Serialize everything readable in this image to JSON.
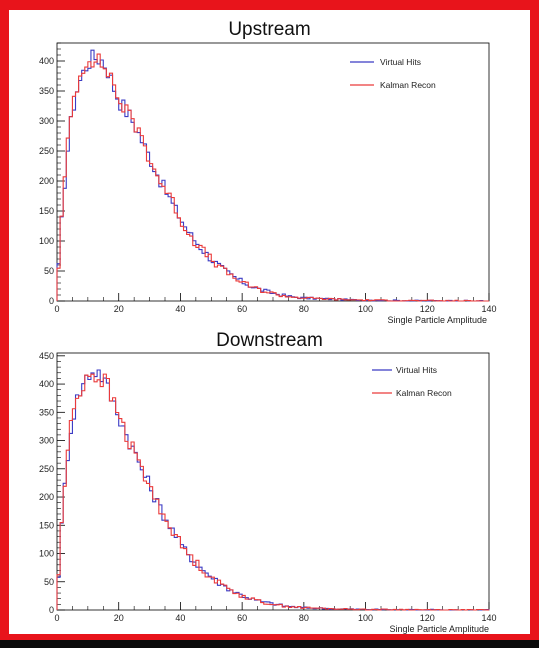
{
  "chart_data": [
    {
      "type": "line",
      "title": "Upstream",
      "xlabel": "Single Particle Amplitude",
      "ylabel": "",
      "xlim": [
        0,
        140
      ],
      "ylim": [
        0,
        430
      ],
      "x_ticks": [
        0,
        20,
        40,
        60,
        80,
        100,
        120,
        140
      ],
      "y_ticks": [
        0,
        50,
        100,
        150,
        200,
        250,
        300,
        350,
        400
      ],
      "grid": false,
      "legend_placement": "top-right",
      "series": [
        {
          "name": "Virtual Hits",
          "color": "#3b3bc4",
          "x": [
            0,
            2,
            4,
            6,
            8,
            10,
            12,
            14,
            16,
            18,
            20,
            22,
            24,
            26,
            28,
            30,
            32,
            34,
            36,
            38,
            40,
            42,
            44,
            46,
            48,
            50,
            52,
            54,
            56,
            58,
            60,
            62,
            64,
            66,
            68,
            70,
            72,
            74,
            76,
            78,
            80,
            85,
            90,
            95,
            100,
            110,
            120,
            130,
            140
          ],
          "y": [
            20,
            170,
            280,
            345,
            375,
            398,
            406,
            405,
            392,
            362,
            336,
            320,
            305,
            285,
            262,
            240,
            218,
            195,
            176,
            156,
            138,
            120,
            105,
            93,
            81,
            70,
            61,
            52,
            45,
            38,
            32,
            27,
            22,
            19,
            16,
            13,
            11,
            9,
            7,
            6,
            5,
            4,
            3,
            2,
            1.5,
            0.8,
            0.4,
            0.2,
            0
          ]
        },
        {
          "name": "Kalman Recon",
          "color": "#ea3a3a",
          "x": [
            0,
            2,
            4,
            6,
            8,
            10,
            12,
            14,
            16,
            18,
            20,
            22,
            24,
            26,
            28,
            30,
            32,
            34,
            36,
            38,
            40,
            42,
            44,
            46,
            48,
            50,
            52,
            54,
            56,
            58,
            60,
            62,
            64,
            66,
            68,
            70,
            72,
            74,
            76,
            78,
            80,
            85,
            90,
            95,
            100,
            110,
            120,
            130,
            140
          ],
          "y": [
            20,
            175,
            290,
            355,
            380,
            410,
            403,
            395,
            388,
            368,
            334,
            322,
            300,
            290,
            265,
            238,
            214,
            196,
            178,
            160,
            136,
            118,
            103,
            92,
            80,
            69,
            60,
            51,
            44,
            37,
            31,
            26,
            22,
            18,
            15,
            13,
            10,
            8,
            7,
            6,
            5,
            4,
            3,
            2,
            1.5,
            0.8,
            0.4,
            0.2,
            0
          ]
        }
      ]
    },
    {
      "type": "line",
      "title": "Downstream",
      "xlabel": "Single Particle Amplitude",
      "ylabel": "",
      "xlim": [
        0,
        140
      ],
      "ylim": [
        0,
        455
      ],
      "x_ticks": [
        0,
        20,
        40,
        60,
        80,
        100,
        120,
        140
      ],
      "y_ticks": [
        0,
        50,
        100,
        150,
        200,
        250,
        300,
        350,
        400,
        450
      ],
      "grid": false,
      "legend_placement": "top-right",
      "series": [
        {
          "name": "Virtual Hits",
          "color": "#3b3bc4",
          "x": [
            0,
            2,
            4,
            6,
            8,
            10,
            12,
            14,
            16,
            18,
            20,
            22,
            24,
            26,
            28,
            30,
            32,
            34,
            36,
            38,
            40,
            42,
            44,
            46,
            48,
            50,
            52,
            54,
            56,
            58,
            60,
            62,
            64,
            66,
            68,
            70,
            72,
            74,
            76,
            78,
            80,
            85,
            90,
            95,
            100,
            110,
            120,
            130,
            140
          ],
          "y": [
            20,
            190,
            305,
            365,
            395,
            415,
            425,
            420,
            398,
            370,
            345,
            318,
            292,
            268,
            243,
            220,
            196,
            174,
            155,
            136,
            118,
            102,
            89,
            78,
            68,
            59,
            50,
            43,
            37,
            31,
            26,
            22,
            18,
            15,
            13,
            11,
            9,
            7,
            6,
            5,
            4,
            3,
            2,
            1.5,
            1,
            0.6,
            0.3,
            0.1,
            0
          ]
        },
        {
          "name": "Kalman Recon",
          "color": "#ea3a3a",
          "x": [
            0,
            2,
            4,
            6,
            8,
            10,
            12,
            14,
            16,
            18,
            20,
            22,
            24,
            26,
            28,
            30,
            32,
            34,
            36,
            38,
            40,
            42,
            44,
            46,
            48,
            50,
            52,
            54,
            56,
            58,
            60,
            62,
            64,
            66,
            68,
            70,
            72,
            74,
            76,
            78,
            80,
            85,
            90,
            95,
            100,
            110,
            120,
            130,
            140
          ],
          "y": [
            20,
            195,
            310,
            370,
            392,
            422,
            415,
            410,
            405,
            368,
            348,
            315,
            290,
            270,
            240,
            222,
            192,
            176,
            152,
            138,
            116,
            104,
            88,
            80,
            66,
            60,
            49,
            44,
            36,
            32,
            25,
            22,
            17,
            15,
            12,
            11,
            8,
            7,
            6,
            5,
            4,
            3,
            2,
            1.5,
            1,
            0.6,
            0.3,
            0.1,
            0
          ]
        }
      ]
    }
  ]
}
